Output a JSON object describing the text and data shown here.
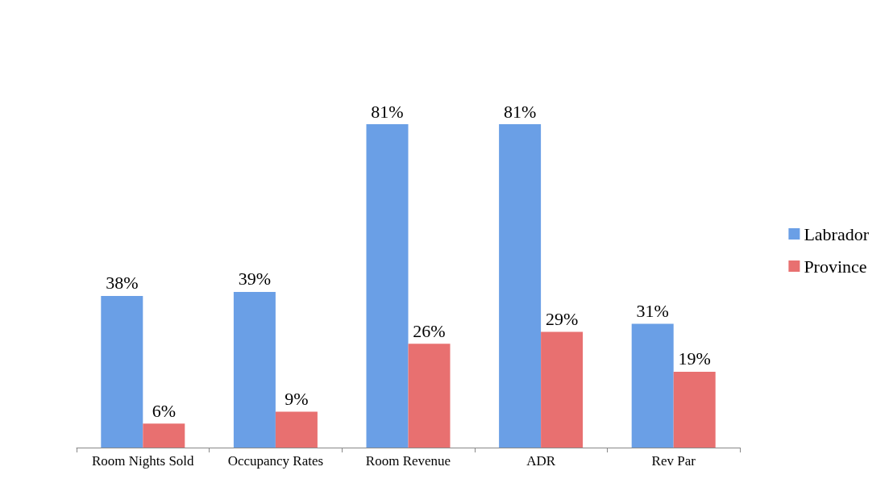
{
  "chart_data": {
    "type": "bar",
    "categories": [
      "Room Nights Sold",
      "Occupancy Rates",
      "Room Revenue",
      "ADR",
      "Rev Par"
    ],
    "series": [
      {
        "name": "Labrador",
        "color": "#6a9fe6",
        "values": [
          38,
          39,
          81,
          81,
          31
        ],
        "value_labels": [
          "38%",
          "39%",
          "81%",
          "81%",
          "31%"
        ]
      },
      {
        "name": "Province",
        "color": "#e87070",
        "values": [
          6,
          9,
          26,
          29,
          19
        ],
        "value_labels": [
          "6%",
          "9%",
          "26%",
          "29%",
          "19%"
        ]
      }
    ],
    "legend": "right",
    "grid": false
  }
}
